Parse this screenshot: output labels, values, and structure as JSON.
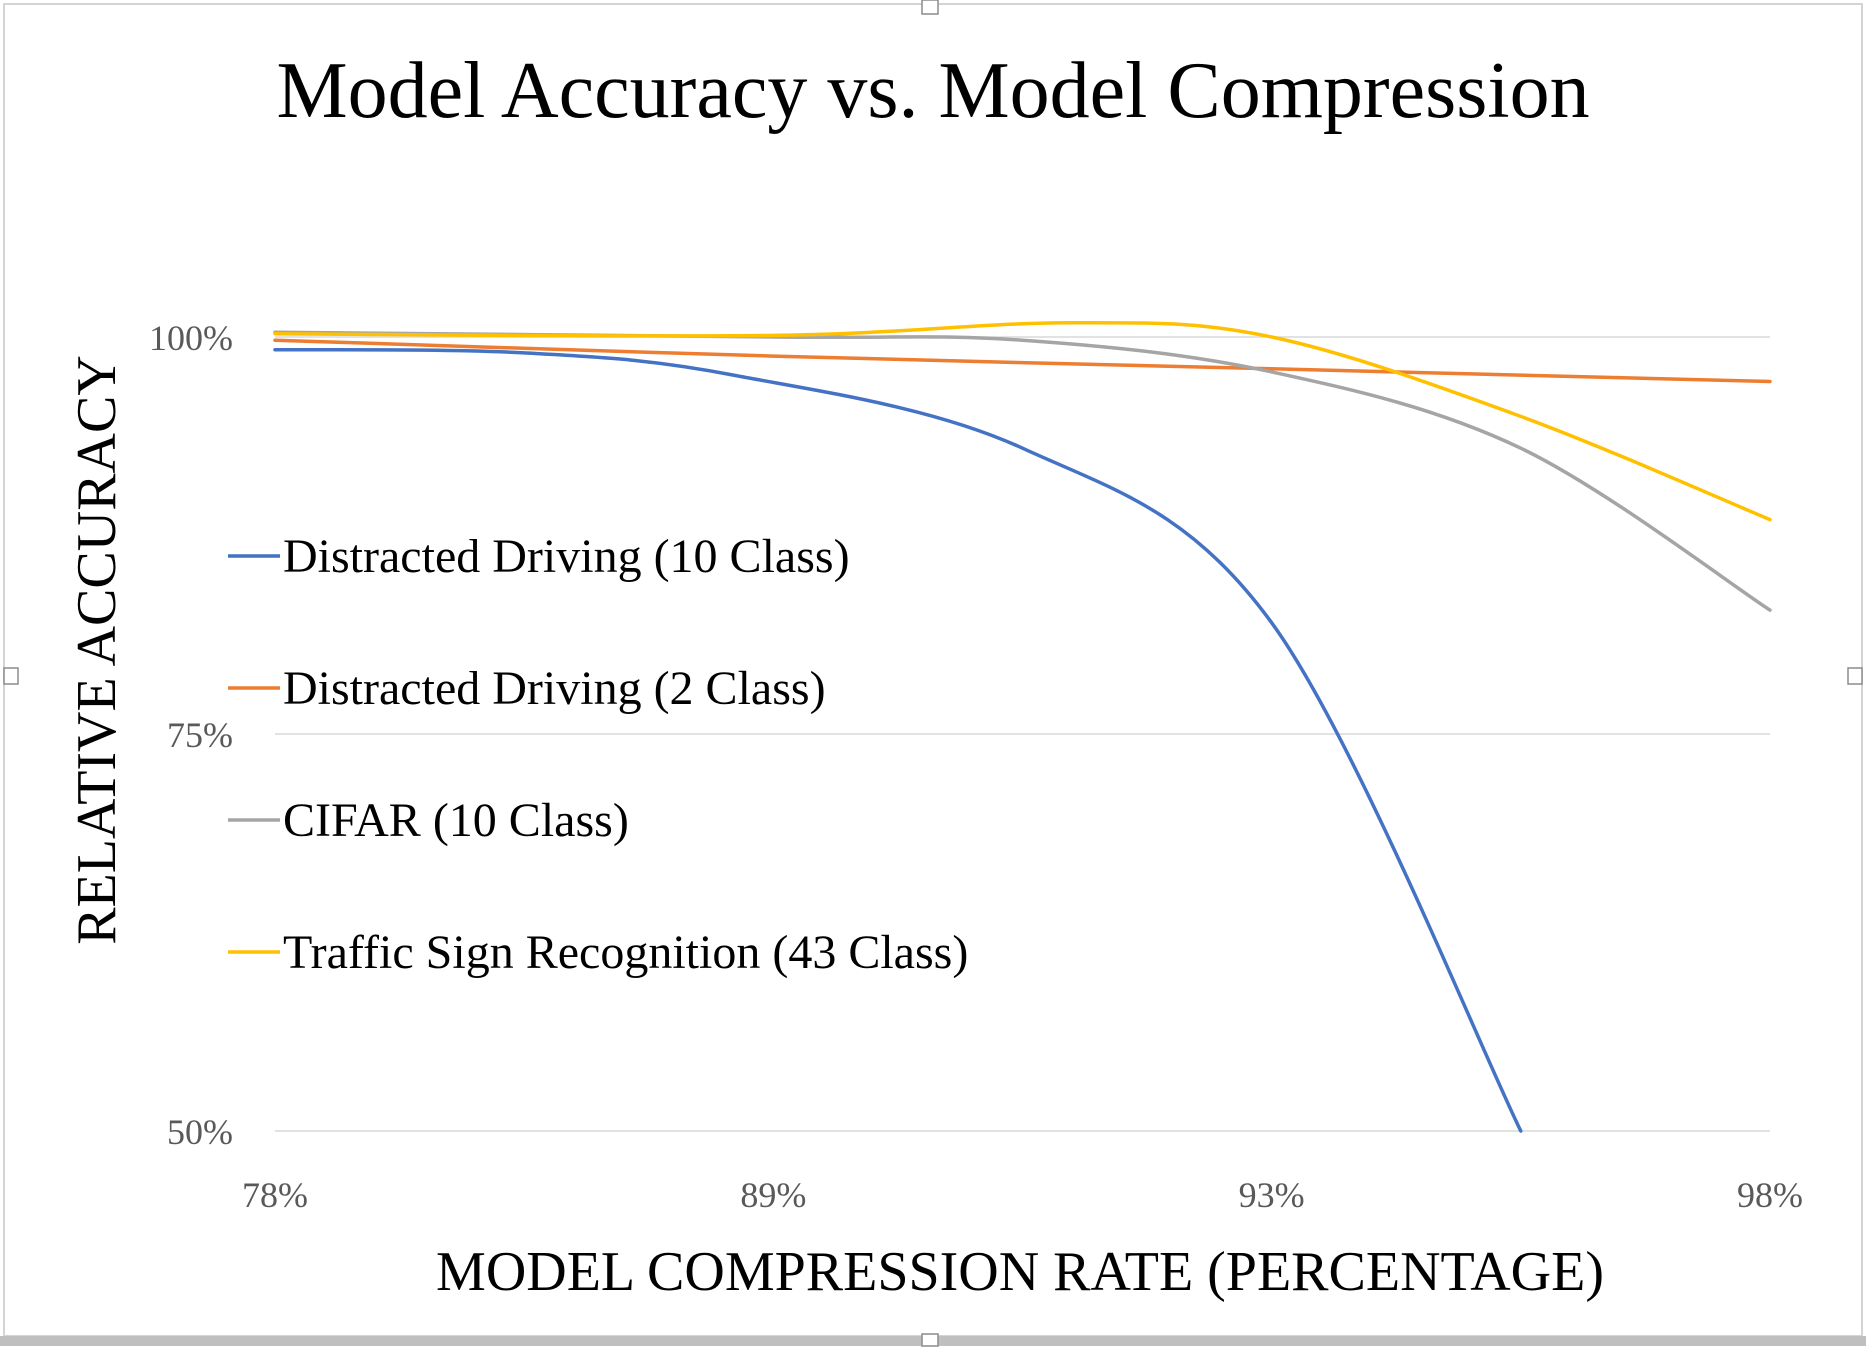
{
  "chart_data": {
    "type": "line",
    "title": "Model Accuracy vs. Model Compression",
    "xlabel": "MODEL COMPRESSION RATE (PERCENTAGE)",
    "ylabel": "RELATIVE ACCURACY",
    "categories": [
      "78%",
      "89%",
      "93%",
      "98%"
    ],
    "ylim": [
      0.5,
      1.0
    ],
    "yticks": [
      {
        "value": 1.0,
        "label": "100%"
      },
      {
        "value": 0.75,
        "label": "75%"
      },
      {
        "value": 0.5,
        "label": "50%"
      }
    ],
    "grid": true,
    "legend_position": "left-inside",
    "series": [
      {
        "name": "Distracted Driving (10 Class)",
        "color": "#4472C4",
        "points": [
          [
            0,
            0.992
          ],
          [
            0.5,
            0.99
          ],
          [
            0.92,
            0.976
          ],
          [
            1.5,
            0.93
          ],
          [
            2,
            0.82
          ],
          [
            2.5,
            0.5
          ]
        ]
      },
      {
        "name": "Distracted Driving (2 Class)",
        "color": "#ED7D31",
        "points": [
          [
            0,
            0.998
          ],
          [
            1,
            0.988
          ],
          [
            2,
            0.98
          ],
          [
            3,
            0.972
          ]
        ]
      },
      {
        "name": "CIFAR (10 Class)",
        "color": "#A5A5A5",
        "points": [
          [
            0,
            1.003
          ],
          [
            1,
            1.0
          ],
          [
            1.5,
            0.998
          ],
          [
            2,
            0.978
          ],
          [
            2.5,
            0.93
          ],
          [
            3,
            0.828
          ]
        ]
      },
      {
        "name": "Traffic Sign Recognition (43 Class)",
        "color": "#FFC000",
        "points": [
          [
            0,
            1.002
          ],
          [
            1,
            1.001
          ],
          [
            1.6,
            1.009
          ],
          [
            2,
            1.0
          ],
          [
            2.5,
            0.95
          ],
          [
            3,
            0.885
          ]
        ]
      }
    ]
  }
}
